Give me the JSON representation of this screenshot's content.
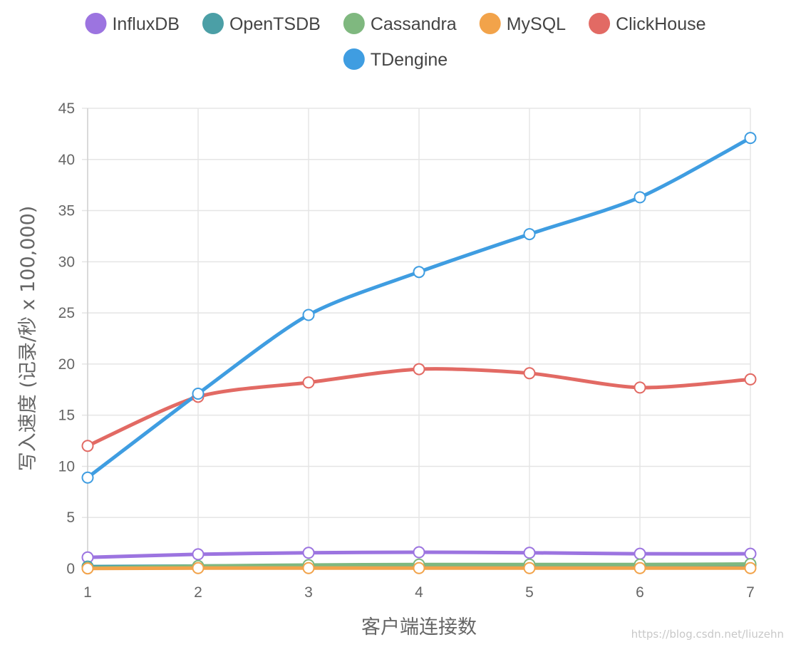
{
  "chart_data": {
    "type": "line",
    "title": "",
    "xlabel": "客户端连接数",
    "ylabel": "写入速度 (记录/秒 x 100,000)",
    "x": [
      1,
      2,
      3,
      4,
      5,
      6,
      7
    ],
    "xlim": [
      1,
      7
    ],
    "ylim": [
      0,
      45
    ],
    "yticks": [
      0,
      5,
      10,
      15,
      20,
      25,
      30,
      35,
      40,
      45
    ],
    "grid": true,
    "legend_position": "top",
    "series": [
      {
        "name": "InfluxDB",
        "color": "#9c74e0",
        "values": [
          1.1,
          1.4,
          1.55,
          1.6,
          1.55,
          1.45,
          1.45
        ]
      },
      {
        "name": "OpenTSDB",
        "color": "#4b9fa6",
        "values": [
          0.2,
          0.25,
          0.3,
          0.35,
          0.35,
          0.35,
          0.35
        ]
      },
      {
        "name": "Cassandra",
        "color": "#7fb87f",
        "values": [
          0.05,
          0.25,
          0.35,
          0.4,
          0.4,
          0.4,
          0.45
        ]
      },
      {
        "name": "MySQL",
        "color": "#f2a34a",
        "values": [
          0.02,
          0.05,
          0.05,
          0.05,
          0.05,
          0.05,
          0.05
        ]
      },
      {
        "name": "ClickHouse",
        "color": "#e26a64",
        "values": [
          12.0,
          16.8,
          18.2,
          19.5,
          19.1,
          17.7,
          18.5
        ]
      },
      {
        "name": "TDengine",
        "color": "#3f9de1",
        "values": [
          8.9,
          17.1,
          24.8,
          29.0,
          32.7,
          36.3,
          42.1
        ]
      }
    ]
  },
  "watermark": "https://blog.csdn.net/liuzehn"
}
